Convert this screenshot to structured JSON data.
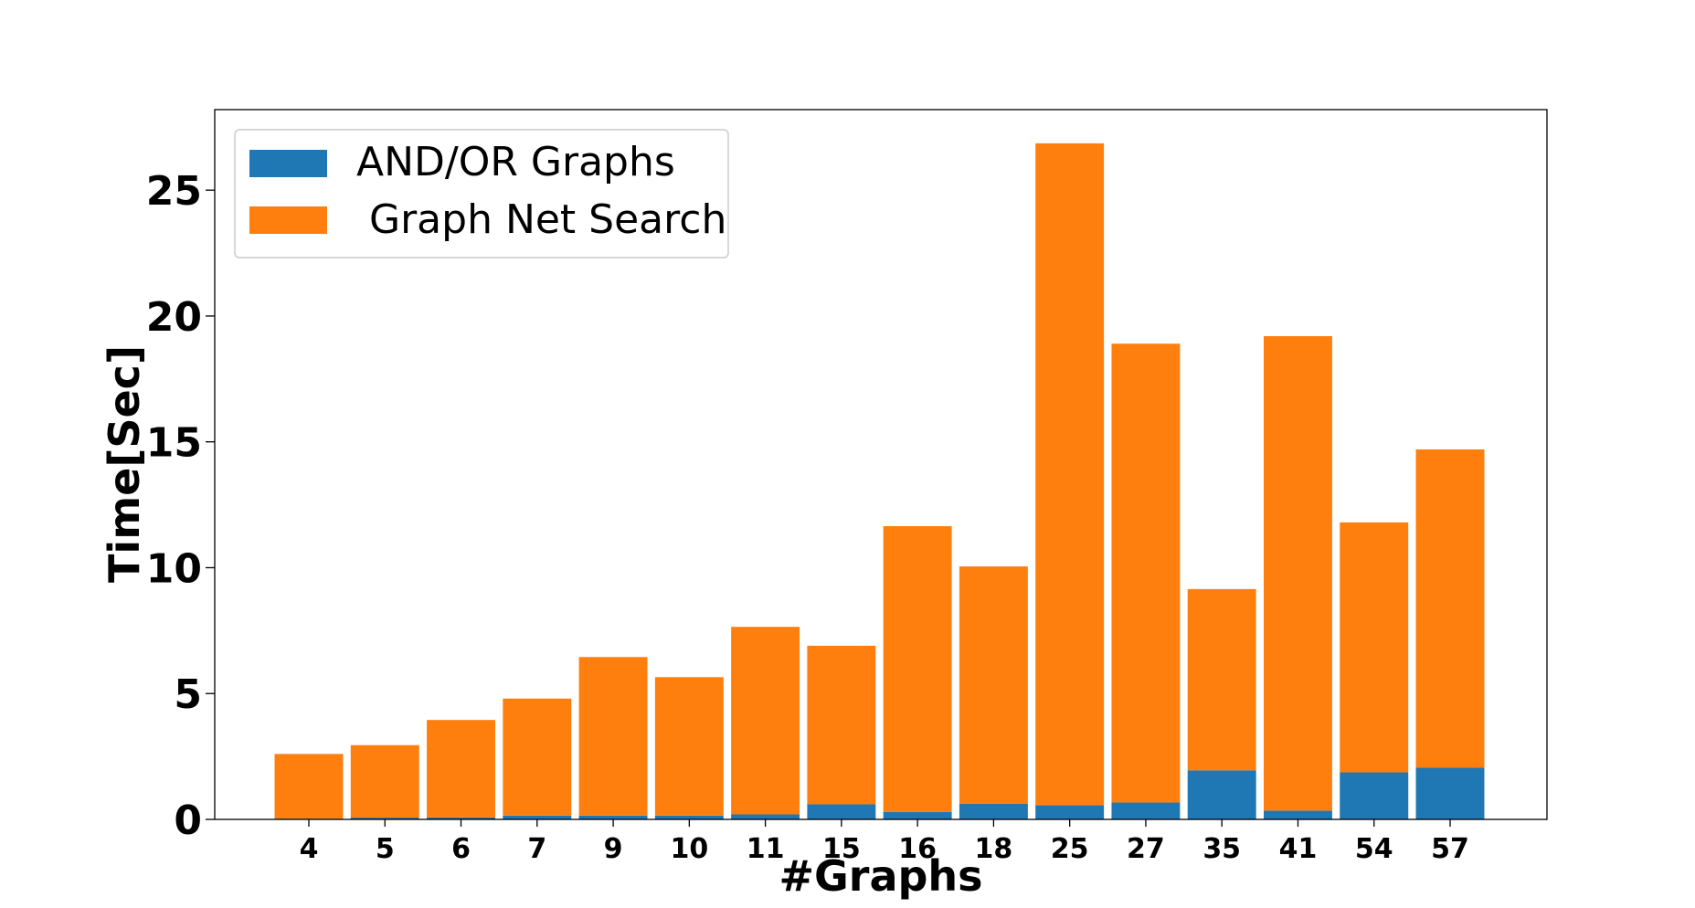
{
  "chart_data": {
    "type": "bar",
    "stacked": true,
    "categories": [
      "4",
      "5",
      "6",
      "7",
      "9",
      "10",
      "11",
      "15",
      "16",
      "18",
      "25",
      "27",
      "35",
      "41",
      "54",
      "57"
    ],
    "series": [
      {
        "name": "AND/OR Graphs",
        "color": "#1f77b4",
        "values": [
          0.03,
          0.07,
          0.08,
          0.15,
          0.15,
          0.15,
          0.2,
          0.6,
          0.3,
          0.62,
          0.56,
          0.67,
          1.95,
          0.35,
          1.87,
          2.05
        ]
      },
      {
        "name": " Graph Net Search",
        "color": "#ff7f0e",
        "values": [
          2.57,
          2.88,
          3.87,
          4.65,
          6.3,
          5.5,
          7.45,
          6.3,
          11.35,
          9.43,
          26.3,
          18.23,
          7.2,
          18.85,
          9.93,
          12.65
        ]
      }
    ],
    "xlabel": "#Graphs",
    "ylabel": "Time[Sec]",
    "ylim": [
      0,
      28.2
    ],
    "yticks": [
      0,
      5,
      10,
      15,
      20,
      25
    ],
    "grid": false,
    "legend_position": "top-left"
  }
}
